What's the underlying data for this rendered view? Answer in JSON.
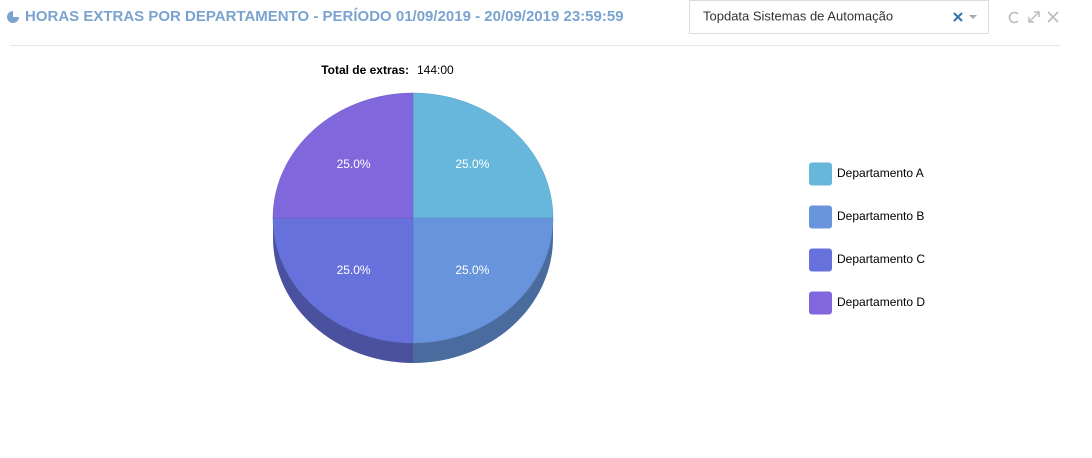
{
  "header": {
    "title": "HORAS EXTRAS POR DEPARTAMENTO - PERÍODO 01/09/2019 - 20/09/2019 23:59:59",
    "select": "Topdata Sistemas de Automação"
  },
  "chart_data": {
    "type": "pie",
    "total_label": "Total de extras:",
    "total_value": "144:00",
    "categories": [
      "Departamento A",
      "Departamento B",
      "Departamento C",
      "Departamento D"
    ],
    "values": [
      25,
      25,
      25,
      25
    ],
    "value_labels": [
      "25.0%",
      "25.0%",
      "25.0%",
      "25.0%"
    ],
    "colors": [
      "#67b7dc",
      "#6794dc",
      "#6771dc",
      "#8067dc"
    ]
  }
}
